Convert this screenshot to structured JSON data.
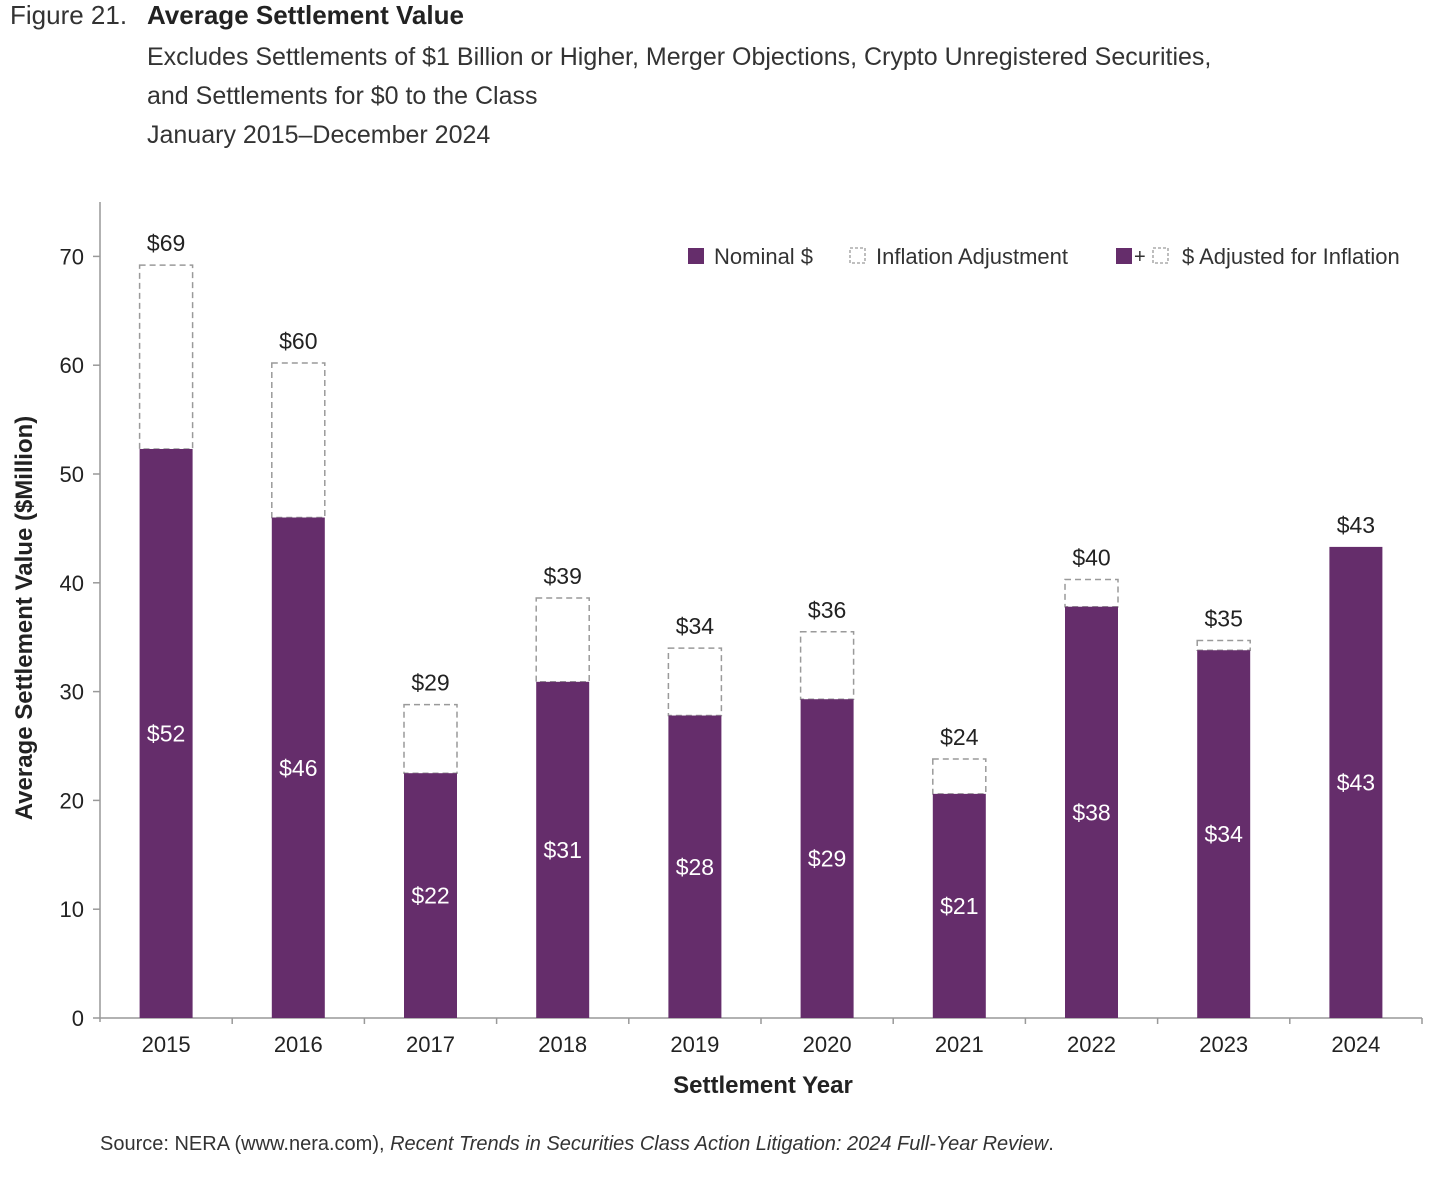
{
  "figure_label": "Figure 21.",
  "title": "Average Settlement Value",
  "subtitle_lines": [
    "Excludes Settlements of $1 Billion or Higher, Merger Objections, Crypto Unregistered Securities,",
    "and Settlements for $0 to the Class",
    "January 2015–December 2024"
  ],
  "source": {
    "prefix": "Source: NERA (www.nera.com), ",
    "italic": "Recent Trends in Securities Class Action Litigation: 2024 Full-Year Review",
    "suffix": "."
  },
  "colors": {
    "nominal": "#652d6b",
    "adjustment_border": "#9a9a9a",
    "axis": "#999999",
    "label": "#222222",
    "inner_label": "#ffffff"
  },
  "chart_data": {
    "type": "bar",
    "stacked": true,
    "categories": [
      "2015",
      "2016",
      "2017",
      "2018",
      "2019",
      "2020",
      "2021",
      "2022",
      "2023",
      "2024"
    ],
    "series": [
      {
        "name": "Nominal $",
        "values": [
          52.3,
          46.0,
          22.5,
          30.9,
          27.8,
          29.3,
          20.6,
          37.8,
          33.8,
          43.3
        ]
      },
      {
        "name": "Inflation Adjustment",
        "values": [
          16.9,
          14.2,
          6.3,
          7.7,
          6.2,
          6.2,
          3.2,
          2.5,
          0.9,
          0.0
        ]
      }
    ],
    "nominal_labels": [
      "$52",
      "$46",
      "$22",
      "$31",
      "$28",
      "$29",
      "$21",
      "$38",
      "$34",
      "$43"
    ],
    "total_labels": [
      "$69",
      "$60",
      "$29",
      "$39",
      "$34",
      "$36",
      "$24",
      "$40",
      "$35",
      "$43"
    ],
    "xlabel": "Settlement Year",
    "ylabel": "Average Settlement Value ($Million)",
    "ylim": [
      0,
      75
    ],
    "yticks": [
      0,
      10,
      20,
      30,
      40,
      50,
      60,
      70
    ],
    "legend": {
      "position": "top-right",
      "items": [
        {
          "label": "Nominal $",
          "kind": "nominal"
        },
        {
          "label": "Inflation Adjustment",
          "kind": "adjustment"
        },
        {
          "label": "$ Adjusted for Inflation",
          "kind": "combined",
          "joiner": "+"
        }
      ]
    }
  }
}
